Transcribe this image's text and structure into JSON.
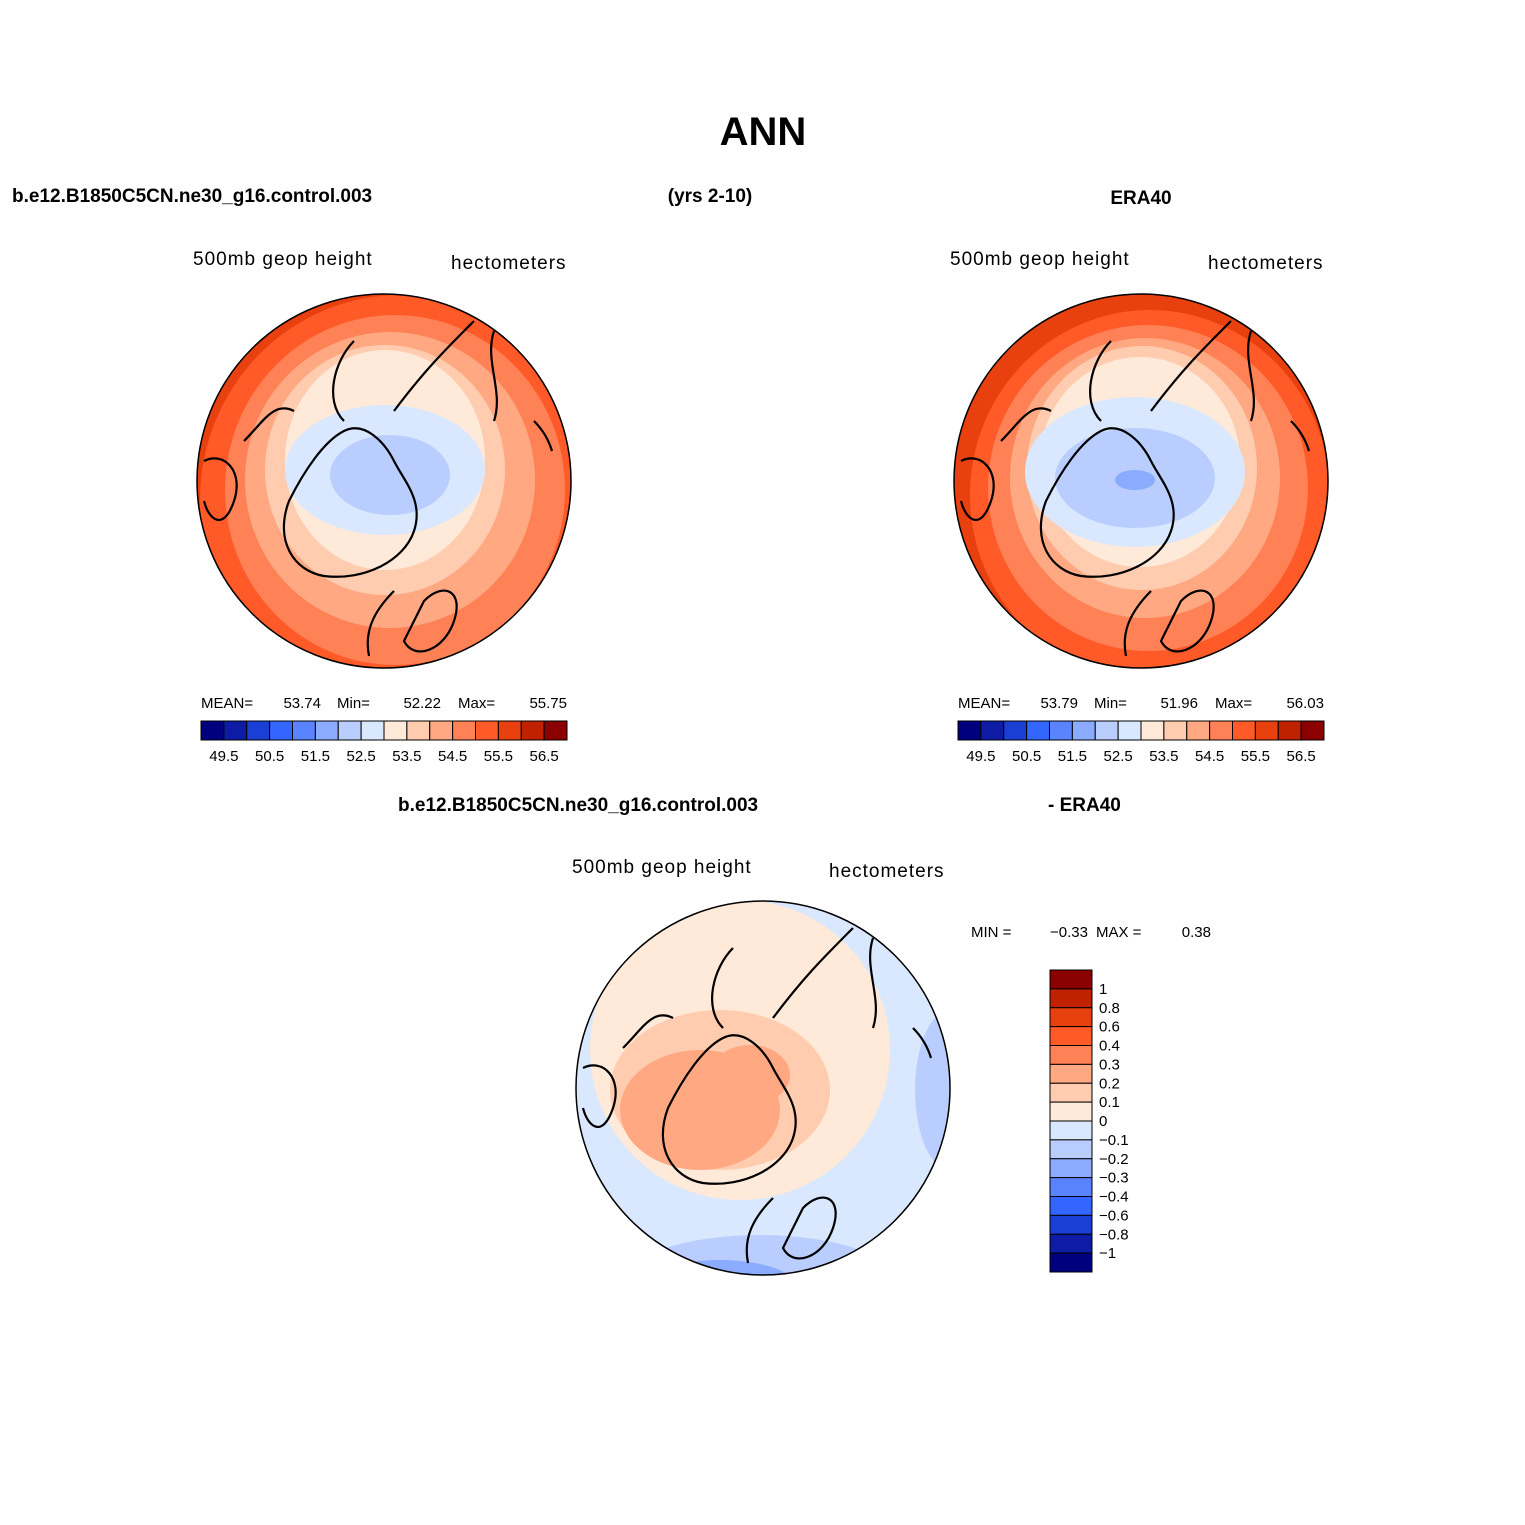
{
  "title": "ANN",
  "header": {
    "left": "b.e12.B1850C5CN.ne30_g16.control.003",
    "center": "(yrs 2-10)",
    "right": "ERA40"
  },
  "panels": [
    {
      "variable": "500mb  geop height",
      "units": "hectometers",
      "mean_label": "MEAN=",
      "mean": 53.74,
      "min_label": "Min=",
      "min": 52.22,
      "max_label": "Max=",
      "max": 55.75,
      "colorbar_labels": [
        49.5,
        50.5,
        51.5,
        52.5,
        53.5,
        54.5,
        55.5,
        56.5
      ]
    },
    {
      "variable": "500mb  geop height",
      "units": "hectometers",
      "mean_label": "MEAN=",
      "mean": 53.79,
      "min_label": "Min=",
      "min": 51.96,
      "max_label": "Max=",
      "max": 56.03,
      "colorbar_labels": [
        49.5,
        50.5,
        51.5,
        52.5,
        53.5,
        54.5,
        55.5,
        56.5
      ]
    }
  ],
  "difference": {
    "case": "b.e12.B1850C5CN.ne30_g16.control.003",
    "reference": "- ERA40",
    "variable": "500mb  geop height",
    "units": "hectometers",
    "min_label": "MIN =",
    "min": "−0.33",
    "max_label": "MAX =",
    "max": 0.38,
    "colorbar_labels": [
      "1",
      "0.8",
      "0.6",
      "0.4",
      "0.3",
      "0.2",
      "0.1",
      "0",
      "−0.1",
      "−0.2",
      "−0.3",
      "−0.4",
      "−0.6",
      "−0.8",
      "−1"
    ]
  }
}
